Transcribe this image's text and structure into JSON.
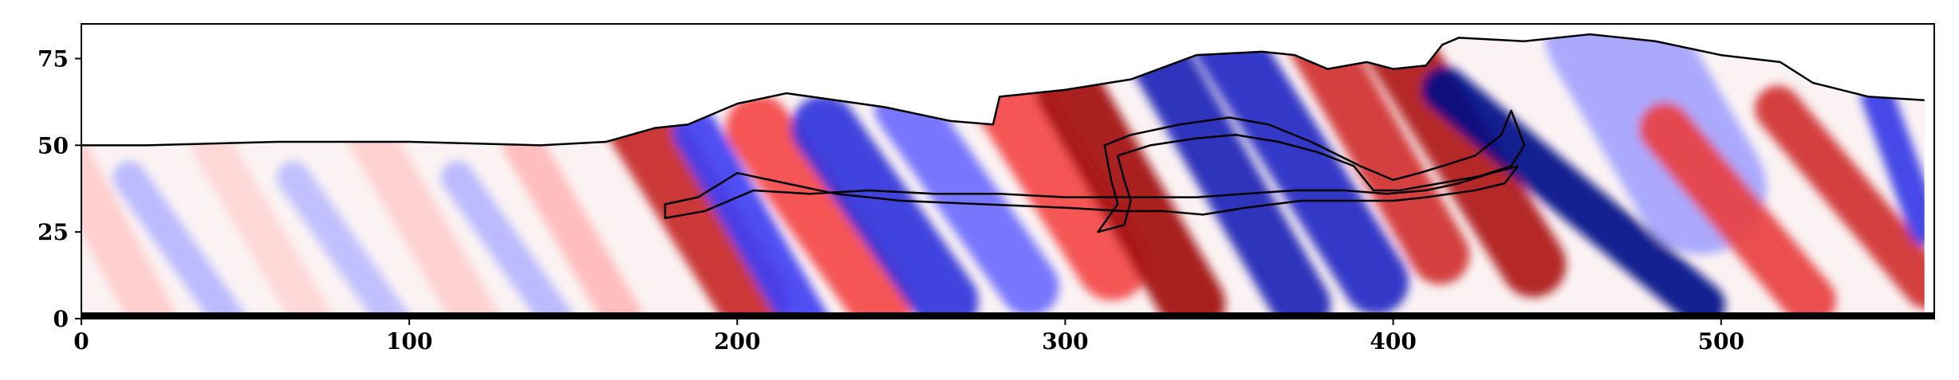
{
  "chart_data": {
    "type": "heatmap",
    "colormap": "seismic (blue-white-red)",
    "colors": {
      "positive": "#c00000",
      "negative": "#0a1aa8",
      "zero": "#ffffff",
      "outline": "#000000"
    },
    "xlim": [
      0,
      565
    ],
    "ylim": [
      0,
      85
    ],
    "x_ticks": [
      0,
      100,
      200,
      300,
      400,
      500
    ],
    "y_ticks": [
      0,
      25,
      50,
      75
    ],
    "x_tick_labels": [
      "0",
      "100",
      "200",
      "300",
      "400",
      "500"
    ],
    "y_tick_labels": [
      "0",
      "25",
      "50",
      "75"
    ],
    "title": "",
    "xlabel": "",
    "ylabel": "",
    "grid": false,
    "top_boundary": [
      [
        0,
        50
      ],
      [
        20,
        50
      ],
      [
        60,
        51
      ],
      [
        100,
        51
      ],
      [
        140,
        50
      ],
      [
        160,
        51
      ],
      [
        175,
        55
      ],
      [
        185,
        56
      ],
      [
        200,
        62
      ],
      [
        215,
        65
      ],
      [
        230,
        63
      ],
      [
        245,
        61
      ],
      [
        265,
        57
      ],
      [
        278,
        56
      ],
      [
        280,
        64
      ],
      [
        300,
        66
      ],
      [
        320,
        69
      ],
      [
        340,
        76
      ],
      [
        360,
        77
      ],
      [
        370,
        76
      ],
      [
        380,
        72
      ],
      [
        392,
        74
      ],
      [
        400,
        72
      ],
      [
        410,
        73
      ],
      [
        415,
        79
      ],
      [
        420,
        81
      ],
      [
        440,
        80
      ],
      [
        460,
        82
      ],
      [
        480,
        80
      ],
      [
        500,
        76
      ],
      [
        518,
        74
      ],
      [
        528,
        68
      ],
      [
        545,
        64
      ],
      [
        562,
        63
      ]
    ],
    "inner_contour_1": [
      [
        178,
        33
      ],
      [
        188,
        35
      ],
      [
        200,
        42
      ],
      [
        215,
        39
      ],
      [
        230,
        36
      ],
      [
        250,
        34
      ],
      [
        275,
        33
      ],
      [
        300,
        32
      ],
      [
        318,
        31
      ],
      [
        330,
        31
      ],
      [
        342,
        30
      ],
      [
        355,
        32
      ],
      [
        372,
        34
      ],
      [
        390,
        34
      ],
      [
        400,
        34
      ],
      [
        410,
        35
      ],
      [
        425,
        37
      ],
      [
        434,
        39
      ],
      [
        438,
        44
      ],
      [
        430,
        42
      ],
      [
        420,
        39
      ],
      [
        410,
        37
      ],
      [
        398,
        36
      ],
      [
        385,
        37
      ],
      [
        370,
        37
      ],
      [
        355,
        36
      ],
      [
        340,
        35
      ],
      [
        322,
        35
      ],
      [
        300,
        35
      ],
      [
        280,
        36
      ],
      [
        260,
        36
      ],
      [
        240,
        37
      ],
      [
        222,
        36
      ],
      [
        205,
        37
      ],
      [
        190,
        31
      ],
      [
        178,
        29
      ]
    ],
    "inner_contour_2": [
      [
        312,
        50
      ],
      [
        320,
        53
      ],
      [
        335,
        56
      ],
      [
        350,
        58
      ],
      [
        362,
        56
      ],
      [
        375,
        51
      ],
      [
        390,
        44
      ],
      [
        400,
        40
      ],
      [
        408,
        42
      ],
      [
        415,
        44
      ],
      [
        425,
        47
      ],
      [
        433,
        53
      ],
      [
        436,
        60
      ],
      [
        440,
        50
      ],
      [
        436,
        44
      ],
      [
        426,
        41
      ],
      [
        414,
        39
      ],
      [
        402,
        37
      ],
      [
        394,
        37
      ],
      [
        388,
        44
      ],
      [
        377,
        48
      ],
      [
        365,
        51
      ],
      [
        352,
        53
      ],
      [
        340,
        52
      ],
      [
        326,
        50
      ],
      [
        316,
        47
      ],
      [
        318,
        40
      ],
      [
        320,
        34
      ],
      [
        318,
        27
      ],
      [
        310,
        25
      ],
      [
        316,
        33
      ],
      [
        314,
        40
      ]
    ],
    "bands": [
      {
        "x": 5,
        "y": 30,
        "w": 14,
        "h": 80,
        "angle": -28,
        "value": 0.15
      },
      {
        "x": 30,
        "y": 20,
        "w": 10,
        "h": 60,
        "angle": -35,
        "value": -0.2
      },
      {
        "x": 55,
        "y": 25,
        "w": 12,
        "h": 70,
        "angle": -30,
        "value": 0.12
      },
      {
        "x": 80,
        "y": 20,
        "w": 10,
        "h": 60,
        "angle": -35,
        "value": -0.18
      },
      {
        "x": 105,
        "y": 25,
        "w": 14,
        "h": 80,
        "angle": -30,
        "value": 0.14
      },
      {
        "x": 130,
        "y": 20,
        "w": 10,
        "h": 60,
        "angle": -35,
        "value": -0.2
      },
      {
        "x": 150,
        "y": 25,
        "w": 12,
        "h": 70,
        "angle": -30,
        "value": 0.2
      },
      {
        "x": 185,
        "y": 35,
        "w": 22,
        "h": 90,
        "angle": -32,
        "value": 0.75
      },
      {
        "x": 205,
        "y": 25,
        "w": 14,
        "h": 80,
        "angle": -30,
        "value": -0.55
      },
      {
        "x": 225,
        "y": 30,
        "w": 20,
        "h": 80,
        "angle": -35,
        "value": 0.55
      },
      {
        "x": 245,
        "y": 30,
        "w": 20,
        "h": 80,
        "angle": -35,
        "value": -0.65
      },
      {
        "x": 270,
        "y": 35,
        "w": 18,
        "h": 80,
        "angle": -35,
        "value": -0.4
      },
      {
        "x": 295,
        "y": 45,
        "w": 22,
        "h": 90,
        "angle": -32,
        "value": 0.55
      },
      {
        "x": 320,
        "y": 35,
        "w": 20,
        "h": 90,
        "angle": -30,
        "value": 0.9
      },
      {
        "x": 350,
        "y": 40,
        "w": 18,
        "h": 100,
        "angle": -30,
        "value": -0.8
      },
      {
        "x": 372,
        "y": 45,
        "w": 20,
        "h": 100,
        "angle": -32,
        "value": -0.75
      },
      {
        "x": 395,
        "y": 50,
        "w": 18,
        "h": 90,
        "angle": -30,
        "value": 0.7
      },
      {
        "x": 420,
        "y": 50,
        "w": 20,
        "h": 100,
        "angle": -32,
        "value": 0.85
      },
      {
        "x": 455,
        "y": 35,
        "w": 14,
        "h": 110,
        "angle": -50,
        "value": -1.0
      },
      {
        "x": 480,
        "y": 60,
        "w": 40,
        "h": 90,
        "angle": -30,
        "value": -0.25
      },
      {
        "x": 505,
        "y": 30,
        "w": 16,
        "h": 80,
        "angle": -40,
        "value": 0.6
      },
      {
        "x": 540,
        "y": 35,
        "w": 14,
        "h": 80,
        "angle": -40,
        "value": 0.7
      },
      {
        "x": 555,
        "y": 45,
        "w": 10,
        "h": 50,
        "angle": -20,
        "value": -0.6
      }
    ]
  }
}
